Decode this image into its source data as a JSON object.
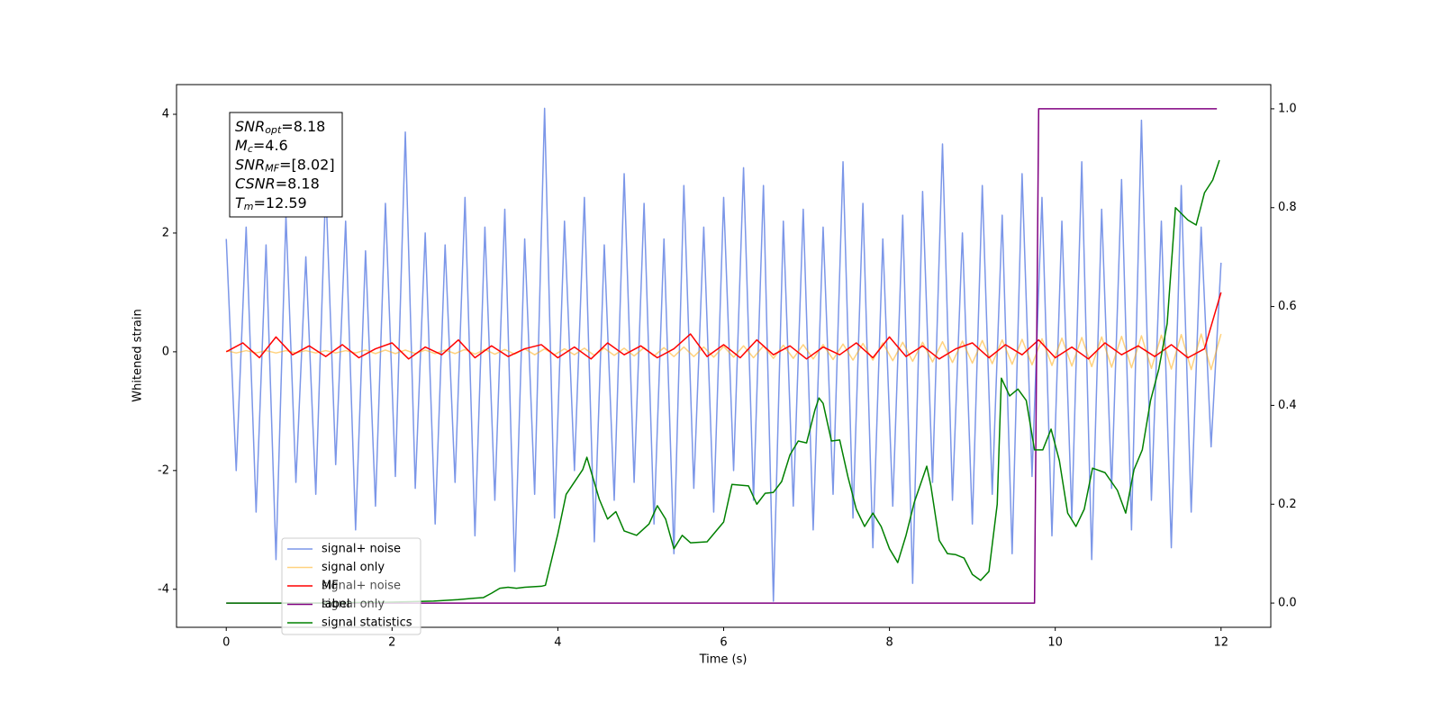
{
  "chart_data": {
    "type": "line",
    "xlabel": "Time (s)",
    "ylabel": "Whitened strain",
    "xlim": [
      -0.6,
      12.6
    ],
    "ylim": [
      -4.64,
      4.5
    ],
    "y2lim": [
      -0.049,
      1.049
    ],
    "xticks": [
      0,
      2,
      4,
      6,
      8,
      10,
      12
    ],
    "yticks": [
      -4,
      -2,
      0,
      2,
      4
    ],
    "y2ticks": [
      {
        "value": 0,
        "label": "0.0"
      },
      0.2,
      0.4,
      0.6,
      0.8,
      {
        "value": 1,
        "label": "1.0"
      }
    ],
    "x": [
      0,
      0.12,
      0.24,
      0.36,
      0.48,
      0.6,
      0.72,
      0.84,
      0.96,
      1.08,
      1.2,
      1.32,
      1.44,
      1.56,
      1.68,
      1.8,
      1.92,
      2.04,
      2.16,
      2.28,
      2.4,
      2.52,
      2.64,
      2.76,
      2.88,
      3.0,
      3.12,
      3.24,
      3.36,
      3.48,
      3.6,
      3.72,
      3.84,
      3.96,
      4.08,
      4.2,
      4.32,
      4.44,
      4.56,
      4.68,
      4.8,
      4.92,
      5.04,
      5.16,
      5.28,
      5.4,
      5.52,
      5.64,
      5.76,
      5.88,
      6.0,
      6.12,
      6.24,
      6.36,
      6.48,
      6.6,
      6.72,
      6.84,
      6.96,
      7.08,
      7.2,
      7.32,
      7.44,
      7.56,
      7.68,
      7.8,
      7.92,
      8.04,
      8.16,
      8.28,
      8.4,
      8.52,
      8.64,
      8.76,
      8.88,
      9.0,
      9.12,
      9.24,
      9.36,
      9.48,
      9.6,
      9.72,
      9.84,
      9.96,
      10.08,
      10.2,
      10.32,
      10.44,
      10.56,
      10.68,
      10.8,
      10.92,
      11.04,
      11.16,
      11.28,
      11.4,
      11.52,
      11.64,
      11.76,
      11.88,
      12.0
    ],
    "series": [
      {
        "name": "signal+ noise",
        "color": "#7b96e8",
        "values": [
          1.9,
          -2.0,
          2.1,
          -2.7,
          1.8,
          -3.5,
          2.3,
          -2.2,
          1.6,
          -2.4,
          2.8,
          -1.9,
          2.2,
          -3.0,
          1.7,
          -2.6,
          2.5,
          -2.1,
          3.7,
          -2.3,
          2.0,
          -2.9,
          1.8,
          -2.2,
          2.6,
          -3.1,
          2.1,
          -2.5,
          2.4,
          -3.7,
          1.9,
          -2.4,
          4.1,
          -2.8,
          2.2,
          -2.0,
          2.6,
          -3.2,
          1.8,
          -2.5,
          3.0,
          -2.2,
          2.5,
          -2.9,
          1.9,
          -3.4,
          2.8,
          -2.3,
          2.1,
          -2.7,
          2.6,
          -2.0,
          3.1,
          -2.5,
          2.8,
          -4.2,
          2.2,
          -2.6,
          2.4,
          -3.0,
          2.1,
          -2.4,
          3.2,
          -2.8,
          2.5,
          -3.3,
          1.9,
          -2.6,
          2.3,
          -3.9,
          2.7,
          -2.2,
          3.5,
          -2.5,
          2.0,
          -2.9,
          2.8,
          -2.4,
          2.3,
          -3.4,
          3.0,
          -2.1,
          2.6,
          -3.1,
          2.2,
          -2.8,
          3.2,
          -3.5,
          2.4,
          -2.3,
          2.9,
          -3.0,
          3.9,
          -2.5,
          2.2,
          -3.3,
          2.8,
          -2.7,
          2.1,
          -1.6,
          1.5
        ]
      },
      {
        "name": "signal only",
        "color": "#ffa500",
        "values": [
          0.02,
          -0.02,
          0.02,
          -0.02,
          0.02,
          -0.02,
          0.02,
          -0.02,
          0.02,
          -0.02,
          0.02,
          -0.02,
          0.02,
          -0.02,
          0.03,
          -0.03,
          0.03,
          -0.03,
          0.03,
          -0.03,
          0.03,
          -0.03,
          0.03,
          -0.03,
          0.04,
          -0.04,
          0.04,
          -0.04,
          0.04,
          -0.04,
          0.05,
          -0.05,
          0.05,
          -0.05,
          0.05,
          -0.05,
          0.06,
          -0.06,
          0.06,
          -0.06,
          0.06,
          -0.07,
          0.07,
          -0.07,
          0.07,
          -0.08,
          0.08,
          -0.08,
          0.08,
          -0.09,
          0.09,
          -0.09,
          0.1,
          -0.1,
          0.1,
          -0.11,
          0.11,
          -0.11,
          0.12,
          -0.12,
          0.12,
          -0.13,
          0.13,
          -0.14,
          0.14,
          -0.14,
          0.15,
          -0.15,
          0.16,
          -0.16,
          0.16,
          -0.17,
          0.17,
          -0.18,
          0.18,
          -0.19,
          0.19,
          -0.2,
          0.2,
          -0.21,
          0.21,
          -0.22,
          0.22,
          -0.23,
          0.23,
          -0.24,
          0.24,
          -0.25,
          0.25,
          -0.26,
          0.26,
          -0.27,
          0.27,
          -0.28,
          0.28,
          -0.29,
          0.29,
          -0.3,
          0.3,
          -0.3,
          0.3
        ]
      },
      {
        "name": "MF",
        "color": "#ff0000",
        "x": [
          0,
          0.2,
          0.4,
          0.6,
          0.8,
          1.0,
          1.2,
          1.4,
          1.6,
          1.8,
          2.0,
          2.2,
          2.4,
          2.6,
          2.8,
          3.0,
          3.2,
          3.4,
          3.6,
          3.8,
          4.0,
          4.2,
          4.4,
          4.6,
          4.8,
          5.0,
          5.2,
          5.4,
          5.6,
          5.8,
          6.0,
          6.2,
          6.4,
          6.6,
          6.8,
          7.0,
          7.2,
          7.4,
          7.6,
          7.8,
          8.0,
          8.2,
          8.4,
          8.6,
          8.8,
          9.0,
          9.2,
          9.4,
          9.6,
          9.8,
          10.0,
          10.2,
          10.4,
          10.6,
          10.8,
          11.0,
          11.2,
          11.4,
          11.6,
          11.8,
          12.0
        ],
        "values": [
          0.0,
          0.15,
          -0.1,
          0.25,
          -0.05,
          0.1,
          -0.08,
          0.12,
          -0.1,
          0.05,
          0.15,
          -0.12,
          0.08,
          -0.05,
          0.2,
          -0.1,
          0.1,
          -0.08,
          0.05,
          0.12,
          -0.1,
          0.08,
          -0.12,
          0.15,
          -0.05,
          0.1,
          -0.1,
          0.05,
          0.3,
          -0.08,
          0.12,
          -0.1,
          0.2,
          -0.05,
          0.1,
          -0.12,
          0.08,
          -0.05,
          0.15,
          -0.1,
          0.25,
          -0.08,
          0.1,
          -0.12,
          0.05,
          0.15,
          -0.1,
          0.12,
          -0.05,
          0.2,
          -0.1,
          0.08,
          -0.12,
          0.15,
          -0.05,
          0.1,
          -0.08,
          0.12,
          -0.1,
          0.05,
          1.0
        ]
      },
      {
        "name": "label",
        "color": "#800080",
        "axis": "y2",
        "x": [
          0,
          9.75,
          9.8,
          11.95
        ],
        "values": [
          0,
          0,
          1,
          1
        ]
      },
      {
        "name": "signal statistics",
        "color": "#008000",
        "axis": "y2",
        "x": [
          0,
          1,
          2,
          2.5,
          2.8,
          3.0,
          3.1,
          3.2,
          3.3,
          3.4,
          3.5,
          3.6,
          3.8,
          3.85,
          4.0,
          4.1,
          4.3,
          4.35,
          4.5,
          4.6,
          4.7,
          4.8,
          4.95,
          5.1,
          5.2,
          5.3,
          5.4,
          5.5,
          5.6,
          5.8,
          6.0,
          6.1,
          6.3,
          6.4,
          6.5,
          6.6,
          6.7,
          6.8,
          6.9,
          7.0,
          7.1,
          7.15,
          7.2,
          7.3,
          7.4,
          7.5,
          7.6,
          7.7,
          7.8,
          7.9,
          8.0,
          8.1,
          8.2,
          8.3,
          8.45,
          8.5,
          8.6,
          8.7,
          8.8,
          8.9,
          9.0,
          9.1,
          9.2,
          9.3,
          9.35,
          9.45,
          9.55,
          9.65,
          9.75,
          9.85,
          9.95,
          10.05,
          10.15,
          10.25,
          10.35,
          10.45,
          10.6,
          10.75,
          10.85,
          10.95,
          11.05,
          11.15,
          11.25,
          11.35,
          11.45,
          11.6,
          11.7,
          11.8,
          11.9,
          11.98
        ],
        "values": [
          0,
          0,
          0.002,
          0.004,
          0.007,
          0.01,
          0.011,
          0.02,
          0.03,
          0.032,
          0.03,
          0.032,
          0.034,
          0.036,
          0.14,
          0.22,
          0.27,
          0.295,
          0.21,
          0.17,
          0.185,
          0.146,
          0.137,
          0.16,
          0.197,
          0.17,
          0.11,
          0.137,
          0.122,
          0.124,
          0.164,
          0.24,
          0.237,
          0.2,
          0.222,
          0.224,
          0.246,
          0.3,
          0.328,
          0.324,
          0.39,
          0.415,
          0.404,
          0.328,
          0.33,
          0.255,
          0.19,
          0.155,
          0.182,
          0.155,
          0.11,
          0.082,
          0.137,
          0.204,
          0.277,
          0.237,
          0.127,
          0.1,
          0.098,
          0.091,
          0.058,
          0.046,
          0.064,
          0.2,
          0.455,
          0.419,
          0.433,
          0.41,
          0.31,
          0.31,
          0.352,
          0.288,
          0.182,
          0.155,
          0.19,
          0.273,
          0.264,
          0.228,
          0.182,
          0.27,
          0.31,
          0.41,
          0.474,
          0.565,
          0.8,
          0.775,
          0.765,
          0.83,
          0.856,
          0.896
        ]
      }
    ],
    "legend_behind": [
      "signal+ noise",
      "signal only"
    ],
    "annotation": [
      {
        "symbol": "SNR",
        "sub": "opt",
        "text": "=8.18"
      },
      {
        "symbol": "M",
        "sub": "c",
        "text": "=4.6"
      },
      {
        "symbol": "SNR",
        "sub": "MF",
        "text": "=[8.02]"
      },
      {
        "symbol": "CSNR",
        "text": "=8.18"
      },
      {
        "symbol": "T",
        "sub": "m",
        "text": "=12.59"
      }
    ]
  }
}
